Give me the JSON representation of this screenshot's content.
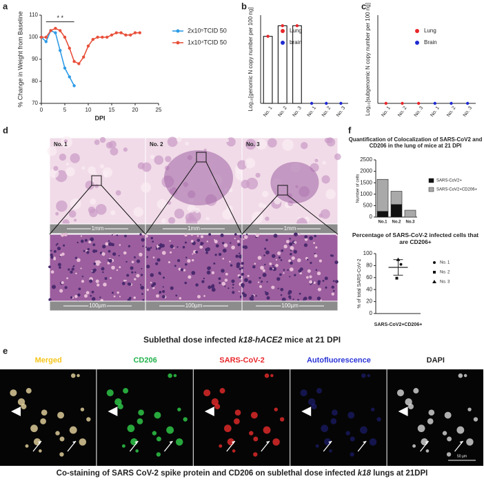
{
  "panel_letters": [
    "a",
    "b",
    "c",
    "d",
    "e",
    "f"
  ],
  "chart_data": [
    {
      "type": "line",
      "x_label": "DPI",
      "y_label": "% Change in Weight from Baseline",
      "annotation": "* *",
      "xlim": [
        0,
        25
      ],
      "xticks": [
        0,
        5,
        10,
        15,
        20,
        25
      ],
      "ylim": [
        70,
        110
      ],
      "yticks": [
        70,
        80,
        90,
        100,
        110
      ],
      "series": [
        {
          "name": "2x10⁵TCID 50",
          "color": "#2e9be6",
          "x": [
            0,
            1,
            2,
            3,
            4,
            5,
            6,
            7
          ],
          "values": [
            100,
            98,
            103,
            102,
            94,
            86,
            82,
            78
          ]
        },
        {
          "name": "1x10⁴TCID 50",
          "color": "#e8503a",
          "x": [
            0,
            1,
            2,
            3,
            4,
            5,
            6,
            7,
            8,
            9,
            10,
            11,
            12,
            13,
            14,
            15,
            16,
            17,
            18,
            19,
            20,
            21
          ],
          "values": [
            100,
            100,
            103,
            104,
            103,
            100,
            95,
            89,
            88,
            91,
            96,
            99,
            100,
            100,
            100,
            101,
            102,
            102,
            101,
            101,
            102,
            102
          ]
        }
      ]
    },
    {
      "type": "bar",
      "y_label": "Log₁₀[genomic N copy number per 100 ng]",
      "ylim": [
        0,
        5
      ],
      "categories": [
        "No. 1",
        "No. 2",
        "No. 3",
        "No. 1",
        "No. 2",
        "No. 3"
      ],
      "series": [
        {
          "name": "Lung",
          "color": "#e8262a",
          "values": [
            3.8,
            4.4,
            4.4,
            null,
            null,
            null
          ]
        },
        {
          "name": "brain",
          "color": "#1f2ad1",
          "values": [
            null,
            null,
            null,
            0,
            0,
            0
          ]
        }
      ]
    },
    {
      "type": "bar",
      "y_label": "Log₁₀[subgenomic N copy number per 100 ng]",
      "ylim": [
        0,
        5
      ],
      "categories": [
        "No. 1",
        "No. 2",
        "No. 3",
        "No. 1",
        "No. 2",
        "No. 3"
      ],
      "series": [
        {
          "name": "Lung",
          "color": "#e8262a",
          "values": [
            0,
            0,
            0,
            null,
            null,
            null
          ]
        },
        {
          "name": "Brain",
          "color": "#1f2ad1",
          "values": [
            null,
            null,
            null,
            0,
            0,
            0
          ]
        }
      ]
    },
    {
      "type": "stacked_bar",
      "title": "Quantification of Colocalization of SARS-CoV2 and CD206 in the lung of mice at 21 DPI",
      "y_label": "Number of cells",
      "ylim": [
        0,
        2500
      ],
      "yticks": [
        0,
        500,
        1000,
        1500,
        2000,
        2500
      ],
      "categories": [
        "No.1",
        "No.2",
        "No.3"
      ],
      "series": [
        {
          "name": "SARS-CoV2+",
          "color": "#111111",
          "values": [
            250,
            550,
            0
          ]
        },
        {
          "name": "SARS-CoV2+CD206+",
          "color": "#a9a9a9",
          "values": [
            1400,
            580,
            300
          ]
        }
      ]
    },
    {
      "type": "dot_plot",
      "title": "Percentage of SARS-CoV-2 infected cells that are CD206+",
      "y_label": "% of total SARS-CoV-2",
      "category": "SARS-CoV2+CD206+",
      "ylim": [
        0,
        100
      ],
      "yticks": [
        0,
        20,
        40,
        60,
        80,
        100
      ],
      "mean": 77,
      "error": 13,
      "points": [
        {
          "name": "No. 1",
          "marker": "circle",
          "value": 82
        },
        {
          "name": "No. 2",
          "marker": "square",
          "value": 59
        },
        {
          "name": "No. 3",
          "marker": "triangle",
          "value": 90
        }
      ]
    }
  ],
  "histology": {
    "samples": [
      "No. 1",
      "No. 2",
      "No. 3"
    ],
    "scale_low": "1mm",
    "scale_high": "100µm",
    "caption": [
      "Sublethal dose infected ",
      "k18-hACE2",
      " mice at 21 DPI"
    ]
  },
  "fluorescence": {
    "channels": [
      {
        "label": "Merged",
        "color": "#f5c518"
      },
      {
        "label": "CD206",
        "color": "#22b24c"
      },
      {
        "label": "SARS-CoV-2",
        "color": "#e8262a"
      },
      {
        "label": "Autofluorescence",
        "color": "#2a35d6"
      },
      {
        "label": "DAPI",
        "color": "#222222"
      }
    ],
    "scale": "50 µm",
    "caption": [
      "Co-staining of SARS CoV-2 spike protein and CD206 on sublethal dose infected ",
      "k18",
      " lungs at 21DPI"
    ]
  }
}
